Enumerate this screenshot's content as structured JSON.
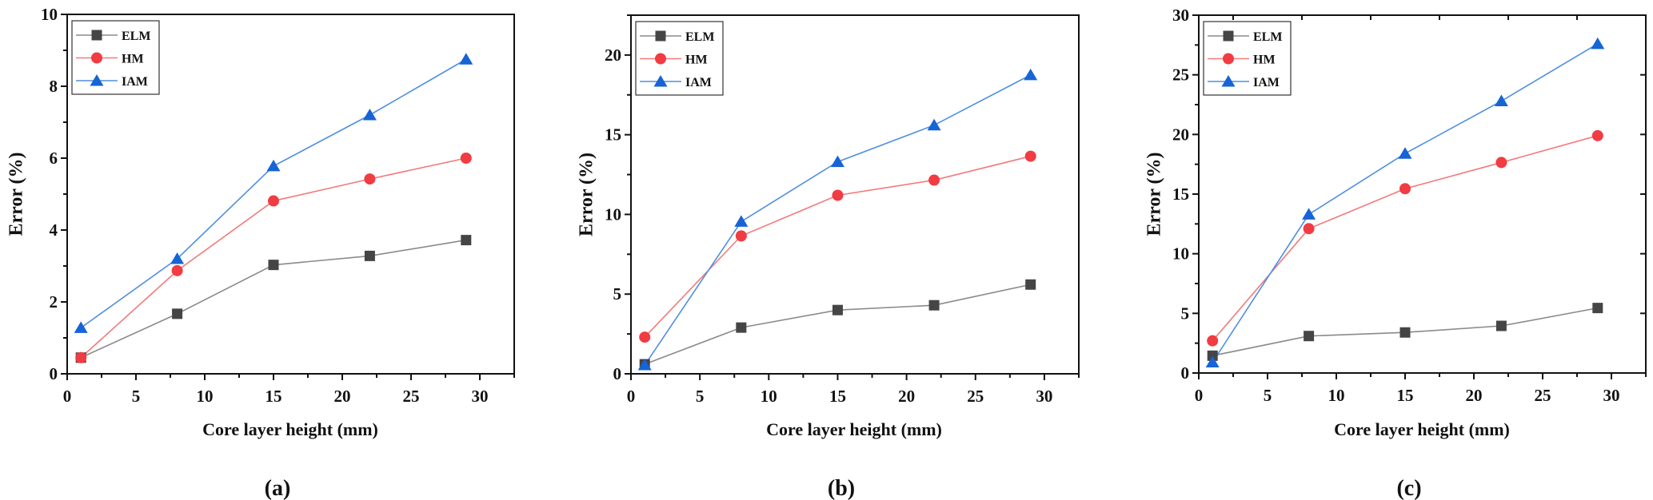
{
  "chart_data": [
    {
      "type": "line",
      "caption": "(a)",
      "xlabel": "Core layer height (mm)",
      "ylabel": "Error (%)",
      "xlim": [
        0,
        32.5
      ],
      "ylim": [
        0,
        10
      ],
      "xticks": [
        0,
        5,
        10,
        15,
        20,
        25,
        30
      ],
      "yticks": [
        0,
        2,
        4,
        6,
        8,
        10
      ],
      "grid": false,
      "legend_position": "top-left",
      "x": [
        1,
        8,
        15,
        22,
        29
      ],
      "series": [
        {
          "name": "ELM",
          "marker": "square",
          "values": [
            0.45,
            1.67,
            3.03,
            3.28,
            3.72
          ]
        },
        {
          "name": "HM",
          "marker": "circle",
          "values": [
            0.45,
            2.87,
            4.81,
            5.42,
            6.0
          ]
        },
        {
          "name": "IAM",
          "marker": "triangle",
          "values": [
            1.28,
            3.2,
            5.78,
            7.2,
            8.75
          ]
        }
      ]
    },
    {
      "type": "line",
      "caption": "(b)",
      "xlabel": "Core layer height (mm)",
      "ylabel": "Error (%)",
      "xlim": [
        0,
        32.5
      ],
      "ylim": [
        0,
        22.5
      ],
      "xticks": [
        0,
        5,
        10,
        15,
        20,
        25,
        30
      ],
      "yticks": [
        0,
        5,
        10,
        15,
        20
      ],
      "grid": false,
      "legend_position": "top-left",
      "x": [
        1,
        8,
        15,
        22,
        29
      ],
      "series": [
        {
          "name": "ELM",
          "marker": "square",
          "values": [
            0.6,
            2.9,
            4.0,
            4.3,
            5.6
          ]
        },
        {
          "name": "HM",
          "marker": "circle",
          "values": [
            2.3,
            8.65,
            11.2,
            12.15,
            13.65
          ]
        },
        {
          "name": "IAM",
          "marker": "triangle",
          "values": [
            0.55,
            9.55,
            13.3,
            15.6,
            18.75
          ]
        }
      ]
    },
    {
      "type": "line",
      "caption": "(c)",
      "xlabel": "Core layer height (mm)",
      "ylabel": "Error (%)",
      "xlim": [
        0,
        32.5
      ],
      "ylim": [
        0,
        30
      ],
      "xticks": [
        0,
        5,
        10,
        15,
        20,
        25,
        30
      ],
      "yticks": [
        0,
        5,
        10,
        15,
        20,
        25,
        30
      ],
      "grid": false,
      "mirror_ticks": true,
      "legend_position": "top-left",
      "x": [
        1,
        8,
        15,
        22,
        29
      ],
      "series": [
        {
          "name": "ELM",
          "marker": "square",
          "values": [
            1.45,
            3.1,
            3.4,
            3.95,
            5.45
          ]
        },
        {
          "name": "HM",
          "marker": "circle",
          "values": [
            2.7,
            12.1,
            15.45,
            17.65,
            19.9
          ]
        },
        {
          "name": "IAM",
          "marker": "triangle",
          "values": [
            0.9,
            13.3,
            18.4,
            22.8,
            27.6
          ]
        }
      ]
    }
  ],
  "colors": {
    "ELM": {
      "line": "#8a8a8a",
      "marker": "#454545"
    },
    "HM": {
      "line": "#f27a7a",
      "marker": "#f03c42"
    },
    "IAM": {
      "line": "#4f8fe0",
      "marker": "#1664d6"
    }
  }
}
